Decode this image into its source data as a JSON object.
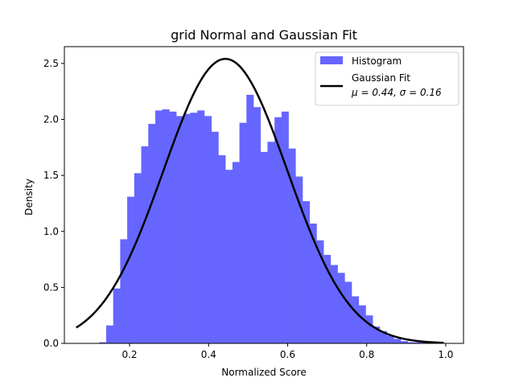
{
  "chart_data": {
    "type": "bar",
    "title": "grid Normal and Gaussian Fit",
    "xlabel": "Normalized Score",
    "ylabel": "Density",
    "xlim": [
      0.035,
      1.045
    ],
    "ylim": [
      0,
      2.65
    ],
    "xticks": [
      0.2,
      0.4,
      0.6,
      0.8,
      1.0
    ],
    "xtick_labels": [
      "0.2",
      "0.4",
      "0.6",
      "0.8",
      "1.0"
    ],
    "yticks": [
      0.0,
      0.5,
      1.0,
      1.5,
      2.0,
      2.5
    ],
    "ytick_labels": [
      "0.0",
      "0.5",
      "1.0",
      "1.5",
      "2.0",
      "2.5"
    ],
    "grid": false,
    "legend_position": "top-right",
    "histogram": {
      "name": "Histogram",
      "color": "#6666ff",
      "bin_start": 0.123,
      "bin_width": 0.01775,
      "values": [
        0.01,
        0.16,
        0.49,
        0.93,
        1.31,
        1.52,
        1.76,
        1.96,
        2.08,
        2.09,
        2.07,
        2.03,
        2.05,
        2.06,
        2.08,
        2.03,
        1.89,
        1.68,
        1.55,
        1.62,
        1.97,
        2.22,
        2.11,
        1.71,
        1.8,
        2.02,
        2.07,
        1.74,
        1.49,
        1.27,
        1.07,
        0.92,
        0.79,
        0.7,
        0.63,
        0.55,
        0.42,
        0.34,
        0.25,
        0.15,
        0.11,
        0.07,
        0.04,
        0.02,
        0.01,
        0.01,
        0.01
      ]
    },
    "fit": {
      "name": "Gaussian Fit",
      "label_line2": "μ = 0.44,  σ = 0.16",
      "mu": 0.4425,
      "sigma": 0.157,
      "x_range": [
        0.065,
        0.995
      ],
      "color": "#000000"
    }
  }
}
